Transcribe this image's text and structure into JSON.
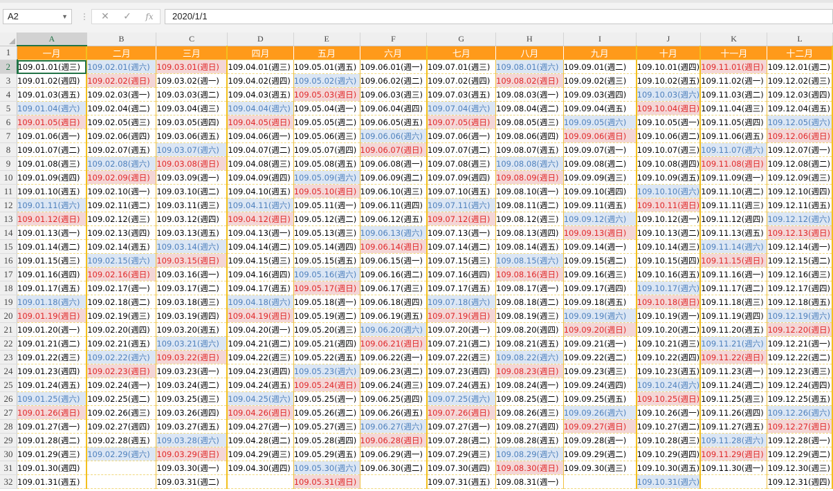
{
  "formula_bar": {
    "name_box": "A2",
    "cancel_icon": "✕",
    "enter_icon": "✓",
    "function_icon": "fx",
    "formula": "2020/1/1"
  },
  "sheet": {
    "columns": [
      "A",
      "B",
      "C",
      "D",
      "E",
      "F",
      "G",
      "H",
      "I",
      "J",
      "K",
      "L"
    ],
    "months": [
      "一月",
      "二月",
      "三月",
      "四月",
      "五月",
      "六月",
      "七月",
      "八月",
      "九月",
      "十月",
      "十一月",
      "十二月"
    ],
    "row_numbers": [
      1,
      2,
      3,
      4,
      5,
      6,
      7,
      8,
      9,
      10,
      11,
      12,
      13,
      14,
      15,
      16,
      17,
      18,
      19,
      20,
      21,
      22,
      23,
      24,
      25,
      26,
      27,
      28,
      29,
      30,
      31,
      32
    ],
    "year_label": "109",
    "weekday_names": [
      "日",
      "一",
      "二",
      "三",
      "四",
      "五",
      "六"
    ],
    "days_in_month": [
      31,
      29,
      31,
      30,
      31,
      30,
      31,
      31,
      30,
      31,
      30,
      31
    ],
    "first_weekday": [
      3,
      6,
      0,
      3,
      5,
      1,
      3,
      6,
      2,
      4,
      0,
      2
    ],
    "active_cell": "A2",
    "colors": {
      "header_bg": "#ff9a1a",
      "header_text": "#ffffff",
      "saturday_bg": "#dbe6f4",
      "saturday_text": "#4f81bd",
      "sunday_bg": "#f4d6d6",
      "sunday_text": "#e0282a",
      "selection": "#217346"
    }
  }
}
